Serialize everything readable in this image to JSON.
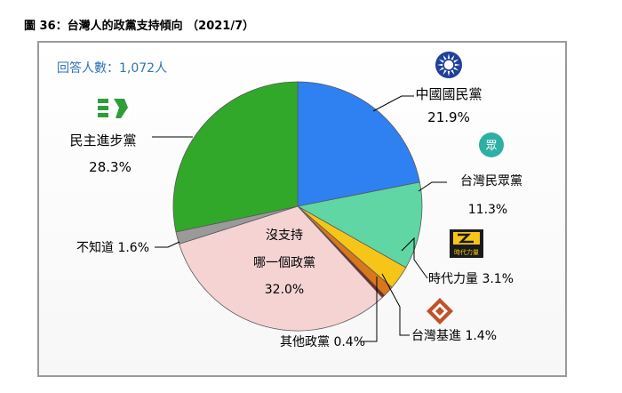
{
  "figure_title": "圖 36：台灣人的政黨支持傾向 （2021/7）",
  "respondents_label": "回答人數：1,072人",
  "chart_data": {
    "type": "pie",
    "title": "台灣人的政黨支持傾向 （2021/7）",
    "slices": [
      {
        "name": "中國國民黨",
        "value": 21.9,
        "label": "21.9%",
        "color": "#2f80f0"
      },
      {
        "name": "台灣民眾黨",
        "value": 11.3,
        "label": "11.3%",
        "color": "#5fd6a4"
      },
      {
        "name": "時代力量",
        "value": 3.1,
        "label": "3.1%",
        "color": "#f5c518"
      },
      {
        "name": "台灣基進",
        "value": 1.4,
        "label": "1.4%",
        "color": "#d9771c"
      },
      {
        "name": "其他政黨",
        "value": 0.4,
        "label": "0.4%",
        "color": "#7a2a1a"
      },
      {
        "name": "沒支持哪一個政黨",
        "value": 32.0,
        "label": "32.0%",
        "color": "#f5d3d3"
      },
      {
        "name": "不知道",
        "value": 1.6,
        "label": "1.6%",
        "color": "#9a9a9a"
      },
      {
        "name": "民主進步黨",
        "value": 28.3,
        "label": "28.3%",
        "color": "#32a82a"
      }
    ],
    "start_angle": "12 o'clock, clockwise"
  },
  "labels": {
    "kmt_name": "中國國民黨",
    "kmt_pct": "21.9%",
    "tpp_name": "台灣民眾黨",
    "tpp_pct": "11.3%",
    "npp_line": "時代力量 3.1%",
    "tsp_line": "台灣基進 1.4%",
    "other_line": "其他政黨 0.4%",
    "none_line1": "沒支持",
    "none_line2": "哪一個政黨",
    "none_pct": "32.0%",
    "dk_line": "不知道 1.6%",
    "dpp_name": "民主進步黨",
    "dpp_pct": "28.3%"
  },
  "logos": {
    "kmt": "kmt-sun-emblem",
    "tpp": "tpp-logo",
    "tpp_text": "眾",
    "npp": "npp-logo",
    "npp_text": "時代力量",
    "tsp": "tsp-diamond-logo",
    "dpp": "dpp-taiwan-logo"
  }
}
